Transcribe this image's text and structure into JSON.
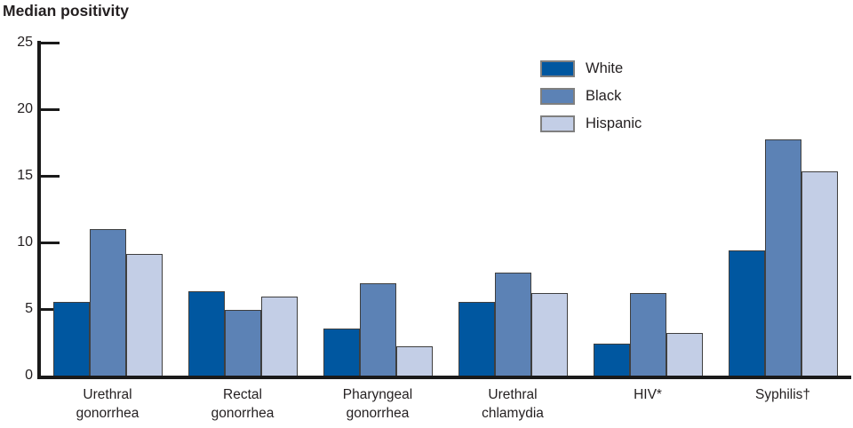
{
  "title": "Median positivity",
  "chart_data": {
    "type": "bar",
    "title": "Median positivity",
    "categories": [
      "Urethral gonorrhea",
      "Rectal gonorrhea",
      "Pharyngeal gonorrhea",
      "Urethral chlamydia",
      "HIV*",
      "Syphilis†"
    ],
    "series": [
      {
        "name": "White",
        "color": "#0057a0",
        "values": [
          5.5,
          6.3,
          3.5,
          5.5,
          2.4,
          9.4
        ]
      },
      {
        "name": "Black",
        "color": "#5c82b5",
        "values": [
          11.0,
          4.9,
          6.9,
          7.7,
          6.2,
          17.7
        ]
      },
      {
        "name": "Hispanic",
        "color": "#c3cee6",
        "values": [
          9.1,
          5.9,
          2.2,
          6.2,
          3.2,
          15.3
        ]
      }
    ],
    "ylabel": "",
    "xlabel": "",
    "ylim": [
      0,
      25
    ],
    "yticks": [
      0,
      5,
      10,
      15,
      20,
      25
    ],
    "grid": false,
    "legend_position": "top-right",
    "bar_outline_color": "#3f3f3f",
    "axis_color": "#1a1a1a"
  }
}
